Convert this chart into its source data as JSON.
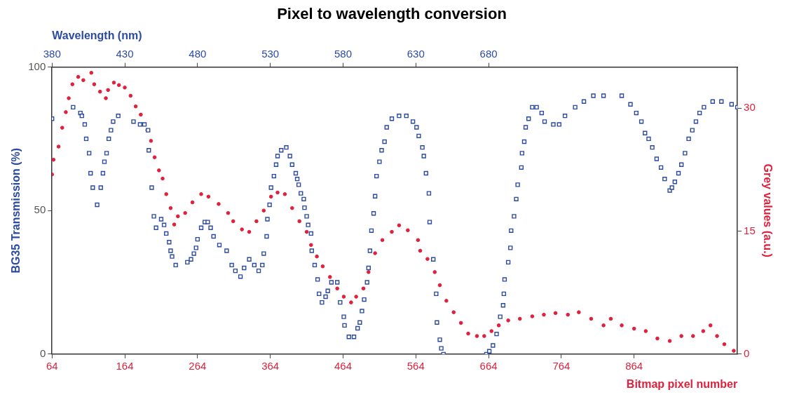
{
  "chart_data": {
    "type": "scatter",
    "title": "Pixel to wavelength conversion",
    "xlabel": "Bitmap pixel number",
    "x2label": "Wavelength (nm)",
    "ylabel": "BG35 Transmission (%)",
    "y2label": "Grey values (a.u.)",
    "xlim": [
      64,
      1006
    ],
    "xticks": [
      64,
      164,
      264,
      364,
      464,
      564,
      664,
      764,
      864
    ],
    "x2lim": [
      380,
      851
    ],
    "x2ticks": [
      380,
      430,
      480,
      530,
      580,
      630,
      680
    ],
    "ylim": [
      0,
      100
    ],
    "yticks": [
      0,
      50,
      100
    ],
    "y2lim": [
      0,
      35
    ],
    "y2ticks": [
      0,
      15,
      30
    ],
    "grid": false,
    "legend": false,
    "series": [
      {
        "color": "#2b4aa3",
        "marker": "square",
        "x": [
          64,
          93,
          103,
          105,
          109,
          111,
          115,
          117,
          120,
          126,
          131,
          134,
          136,
          139,
          142,
          145,
          148,
          155,
          176,
          185,
          191,
          196,
          197,
          201,
          204,
          207,
          214,
          218,
          221,
          225,
          227,
          229,
          234,
          250,
          255,
          259,
          262,
          264,
          269,
          274,
          278,
          282,
          286,
          294,
          304,
          311,
          316,
          323,
          328,
          335,
          342,
          348,
          353,
          355,
          359,
          360,
          363,
          365,
          369,
          372,
          374,
          379,
          386,
          391,
          394,
          399,
          401,
          403,
          406,
          410,
          411,
          414,
          416,
          420,
          421,
          425,
          429,
          431,
          435,
          440,
          443,
          448,
          456,
          460,
          465,
          466,
          472,
          479,
          484,
          487,
          490,
          493,
          497,
          499,
          501,
          503,
          506,
          508,
          510,
          514,
          517,
          521,
          524,
          531,
          541,
          551,
          560,
          565,
          568,
          573,
          575,
          578,
          582,
          583,
          588,
          592,
          593,
          597,
          599,
          602,
          661,
          665,
          670,
          675,
          680,
          684,
          685,
          686,
          691,
          694,
          695,
          699,
          702,
          704,
          709,
          710,
          713,
          715,
          719,
          724,
          730,
          737,
          741,
          753,
          761,
          769,
          783,
          795,
          808,
          822,
          847,
          859,
          867,
          874,
          879,
          884,
          889,
          895,
          901,
          906,
          913,
          916,
          920,
          925,
          929,
          934,
          939,
          944,
          949,
          954,
          960,
          972,
          984,
          998,
          1006
        ],
        "values": [
          82,
          86,
          84,
          83,
          80,
          75,
          70,
          63,
          58,
          52,
          58,
          63,
          67,
          70,
          75,
          78,
          81,
          83,
          81,
          80,
          80,
          78,
          71,
          58,
          48,
          44,
          47,
          45,
          42,
          39,
          36,
          34,
          31,
          32,
          33,
          35,
          37,
          40,
          44,
          46,
          46,
          44,
          41,
          38,
          36,
          31,
          29,
          27,
          30,
          33,
          31,
          29,
          31,
          35,
          41,
          47,
          52,
          58,
          62,
          66,
          69,
          71,
          72,
          69,
          66,
          63,
          61,
          59,
          56,
          54,
          51,
          48,
          45,
          42,
          36,
          31,
          26,
          21,
          18,
          20,
          22,
          25,
          25,
          18,
          13,
          10,
          6,
          6,
          9,
          11,
          15,
          19,
          25,
          30,
          36,
          43,
          49,
          55,
          62,
          67,
          71,
          74,
          79,
          82,
          83,
          83,
          81,
          79,
          76,
          72,
          69,
          63,
          56,
          46,
          33,
          21,
          11,
          5,
          2,
          0,
          0,
          1,
          3,
          7,
          13,
          17,
          21,
          26,
          32,
          37,
          43,
          48,
          54,
          59,
          65,
          70,
          74,
          79,
          82,
          86,
          86,
          84,
          81,
          80,
          80,
          83,
          86,
          88,
          90,
          90,
          90,
          87,
          84,
          81,
          77,
          75,
          72,
          68,
          65,
          61,
          57,
          58,
          60,
          63,
          66,
          70,
          75,
          78,
          81,
          84,
          86,
          88,
          88,
          87,
          86
        ]
      },
      {
        "color": "#e0203c",
        "marker": "circle",
        "axis": "y2",
        "x": [
          64,
          66,
          73,
          78,
          83,
          87,
          92,
          100,
          107,
          118,
          122,
          130,
          138,
          141,
          149,
          156,
          164,
          172,
          179,
          186,
          195,
          200,
          205,
          211,
          216,
          221,
          227,
          232,
          237,
          247,
          257,
          269,
          279,
          293,
          306,
          313,
          325,
          335,
          345,
          355,
          365,
          374,
          384,
          394,
          404,
          414,
          420,
          428,
          436,
          446,
          456,
          465,
          475,
          482,
          492,
          499,
          508,
          518,
          531,
          541,
          553,
          567,
          570,
          580,
          590,
          597,
          606,
          616,
          626,
          636,
          648,
          658,
          668,
          678,
          691,
          707,
          724,
          740,
          756,
          773,
          788,
          805,
          822,
          832,
          847,
          864,
          880,
          896,
          913,
          929,
          945,
          959,
          969,
          978,
          988,
          1001
        ],
        "values": [
          21.9,
          23.7,
          25.3,
          27.6,
          29.5,
          31.2,
          32.9,
          33.8,
          33.4,
          34.3,
          32.9,
          32.0,
          31.2,
          32.2,
          33.1,
          32.8,
          32.5,
          31.5,
          30.2,
          29.2,
          27.3,
          26.0,
          24.0,
          22.4,
          21.4,
          19.5,
          17.8,
          15.8,
          16.8,
          17.2,
          18.5,
          19.5,
          19.2,
          18.3,
          17.2,
          16.2,
          15.2,
          14.9,
          16.2,
          17.5,
          19.2,
          19.7,
          19.5,
          17.8,
          16.2,
          14.9,
          13.3,
          11.9,
          10.7,
          9.4,
          8.0,
          7.0,
          6.3,
          7.0,
          8.0,
          10.0,
          12.3,
          13.9,
          14.9,
          15.7,
          15.1,
          13.9,
          12.6,
          11.6,
          10.0,
          8.4,
          6.5,
          5.1,
          3.8,
          2.5,
          2.2,
          2.2,
          2.8,
          3.5,
          4.1,
          4.3,
          4.6,
          4.8,
          5.0,
          4.8,
          5.1,
          4.3,
          3.5,
          4.3,
          3.5,
          3.1,
          2.8,
          1.9,
          1.6,
          2.2,
          2.2,
          2.8,
          3.5,
          2.2,
          1.2,
          0.4
        ]
      }
    ]
  }
}
